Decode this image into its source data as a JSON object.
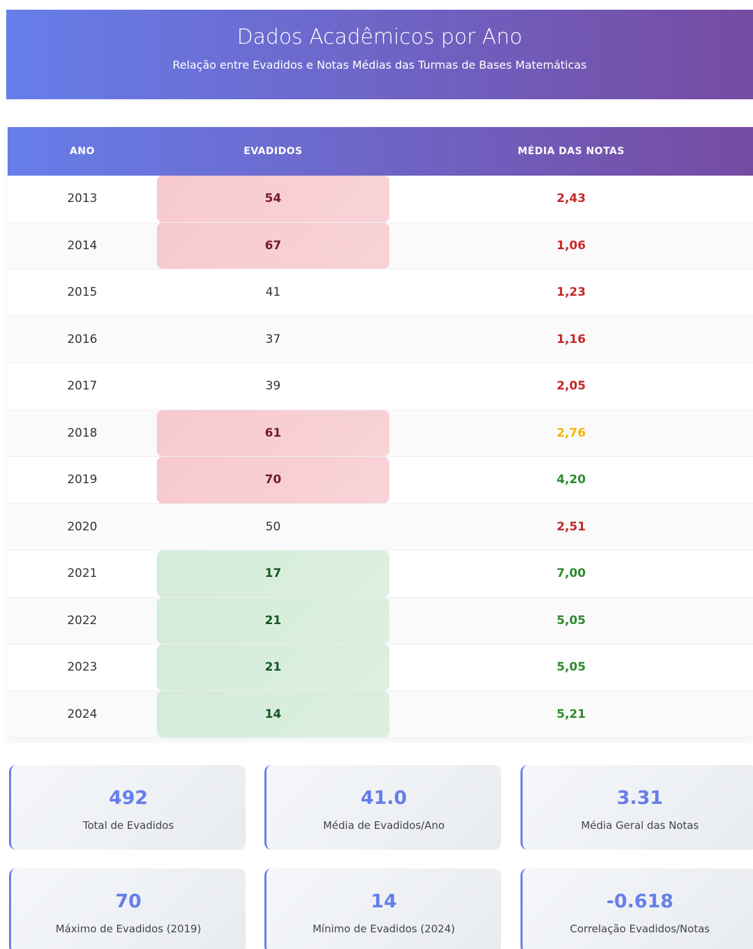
{
  "header": {
    "title": "Dados Acadêmicos por Ano",
    "subtitle": "Relação entre Evadidos e Notas Médias das Turmas de Bases Matemáticas"
  },
  "table": {
    "columns": [
      "ANO",
      "EVADIDOS",
      "MÉDIA DAS NOTAS"
    ],
    "rows": [
      {
        "ano": "2013",
        "evadidos": "54",
        "media": "2,43",
        "evadidos_bg": "#f7c9ce",
        "evadidos_color": "#721c24",
        "media_color": "#c62828"
      },
      {
        "ano": "2014",
        "evadidos": "67",
        "media": "1,06",
        "evadidos_bg": "#f7c9ce",
        "evadidos_color": "#721c24",
        "media_color": "#c62828"
      },
      {
        "ano": "2015",
        "evadidos": "41",
        "media": "1,23",
        "evadidos_bg": null,
        "evadidos_color": "#333333",
        "media_color": "#c62828"
      },
      {
        "ano": "2016",
        "evadidos": "37",
        "media": "1,16",
        "evadidos_bg": null,
        "evadidos_color": "#333333",
        "media_color": "#c62828"
      },
      {
        "ano": "2017",
        "evadidos": "39",
        "media": "2,05",
        "evadidos_bg": null,
        "evadidos_color": "#333333",
        "media_color": "#c62828"
      },
      {
        "ano": "2018",
        "evadidos": "61",
        "media": "2,76",
        "evadidos_bg": "#f7c9ce",
        "evadidos_color": "#721c24",
        "media_color": "#f4b400"
      },
      {
        "ano": "2019",
        "evadidos": "70",
        "media": "4,20",
        "evadidos_bg": "#f7c9ce",
        "evadidos_color": "#721c24",
        "media_color": "#2e8b2e"
      },
      {
        "ano": "2020",
        "evadidos": "50",
        "media": "2,51",
        "evadidos_bg": null,
        "evadidos_color": "#333333",
        "media_color": "#c62828"
      },
      {
        "ano": "2021",
        "evadidos": "17",
        "media": "7,00",
        "evadidos_bg": "#d4ecd9",
        "evadidos_color": "#155724",
        "media_color": "#2e8b2e"
      },
      {
        "ano": "2022",
        "evadidos": "21",
        "media": "5,05",
        "evadidos_bg": "#d4ecd9",
        "evadidos_color": "#155724",
        "media_color": "#2e8b2e"
      },
      {
        "ano": "2023",
        "evadidos": "21",
        "media": "5,05",
        "evadidos_bg": "#d4ecd9",
        "evadidos_color": "#155724",
        "media_color": "#2e8b2e"
      },
      {
        "ano": "2024",
        "evadidos": "14",
        "media": "5,21",
        "evadidos_bg": "#d4ecd9",
        "evadidos_color": "#155724",
        "media_color": "#2e8b2e"
      }
    ]
  },
  "stats": [
    {
      "value": "492",
      "label": "Total de Evadidos"
    },
    {
      "value": "41.0",
      "label": "Média de Evadidos/Ano"
    },
    {
      "value": "3.31",
      "label": "Média Geral das Notas"
    },
    {
      "value": "70",
      "label": "Máximo de Evadidos (2019)"
    },
    {
      "value": "14",
      "label": "Mínimo de Evadidos (2024)"
    },
    {
      "value": "-0.618",
      "label": "Correlação Evadidos/Notas"
    }
  ]
}
